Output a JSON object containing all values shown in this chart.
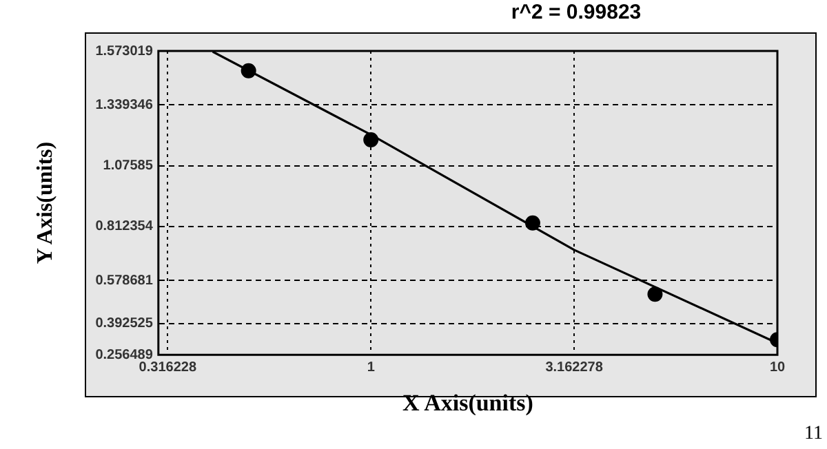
{
  "chart_data": {
    "type": "scatter",
    "title": "r^2 = 0.99823",
    "xlabel": "X Axis(units)",
    "ylabel": "Y Axis(units)",
    "annotations": [
      "11"
    ],
    "log": "x",
    "grid": true,
    "xlim": [
      0.316228,
      10
    ],
    "xticks": [
      0.316228,
      1,
      3.162278,
      10
    ],
    "ylim": [
      0.256489,
      1.573019
    ],
    "yticks": [
      0.256489,
      0.392525,
      0.578681,
      0.812354,
      1.07585,
      1.339346,
      1.573019
    ],
    "series": [
      {
        "color": "#000000",
        "marker": "circle",
        "x": [
          0.5,
          1,
          2.5,
          5,
          10
        ],
        "values": [
          1.487,
          1.188,
          0.828,
          0.519,
          0.322
        ]
      },
      {
        "type": "line",
        "color": "#000000",
        "marker": "none",
        "x": [
          0.408,
          1,
          3.162278,
          10
        ],
        "values": [
          1.57,
          1.21,
          0.711,
          0.307
        ]
      }
    ]
  }
}
